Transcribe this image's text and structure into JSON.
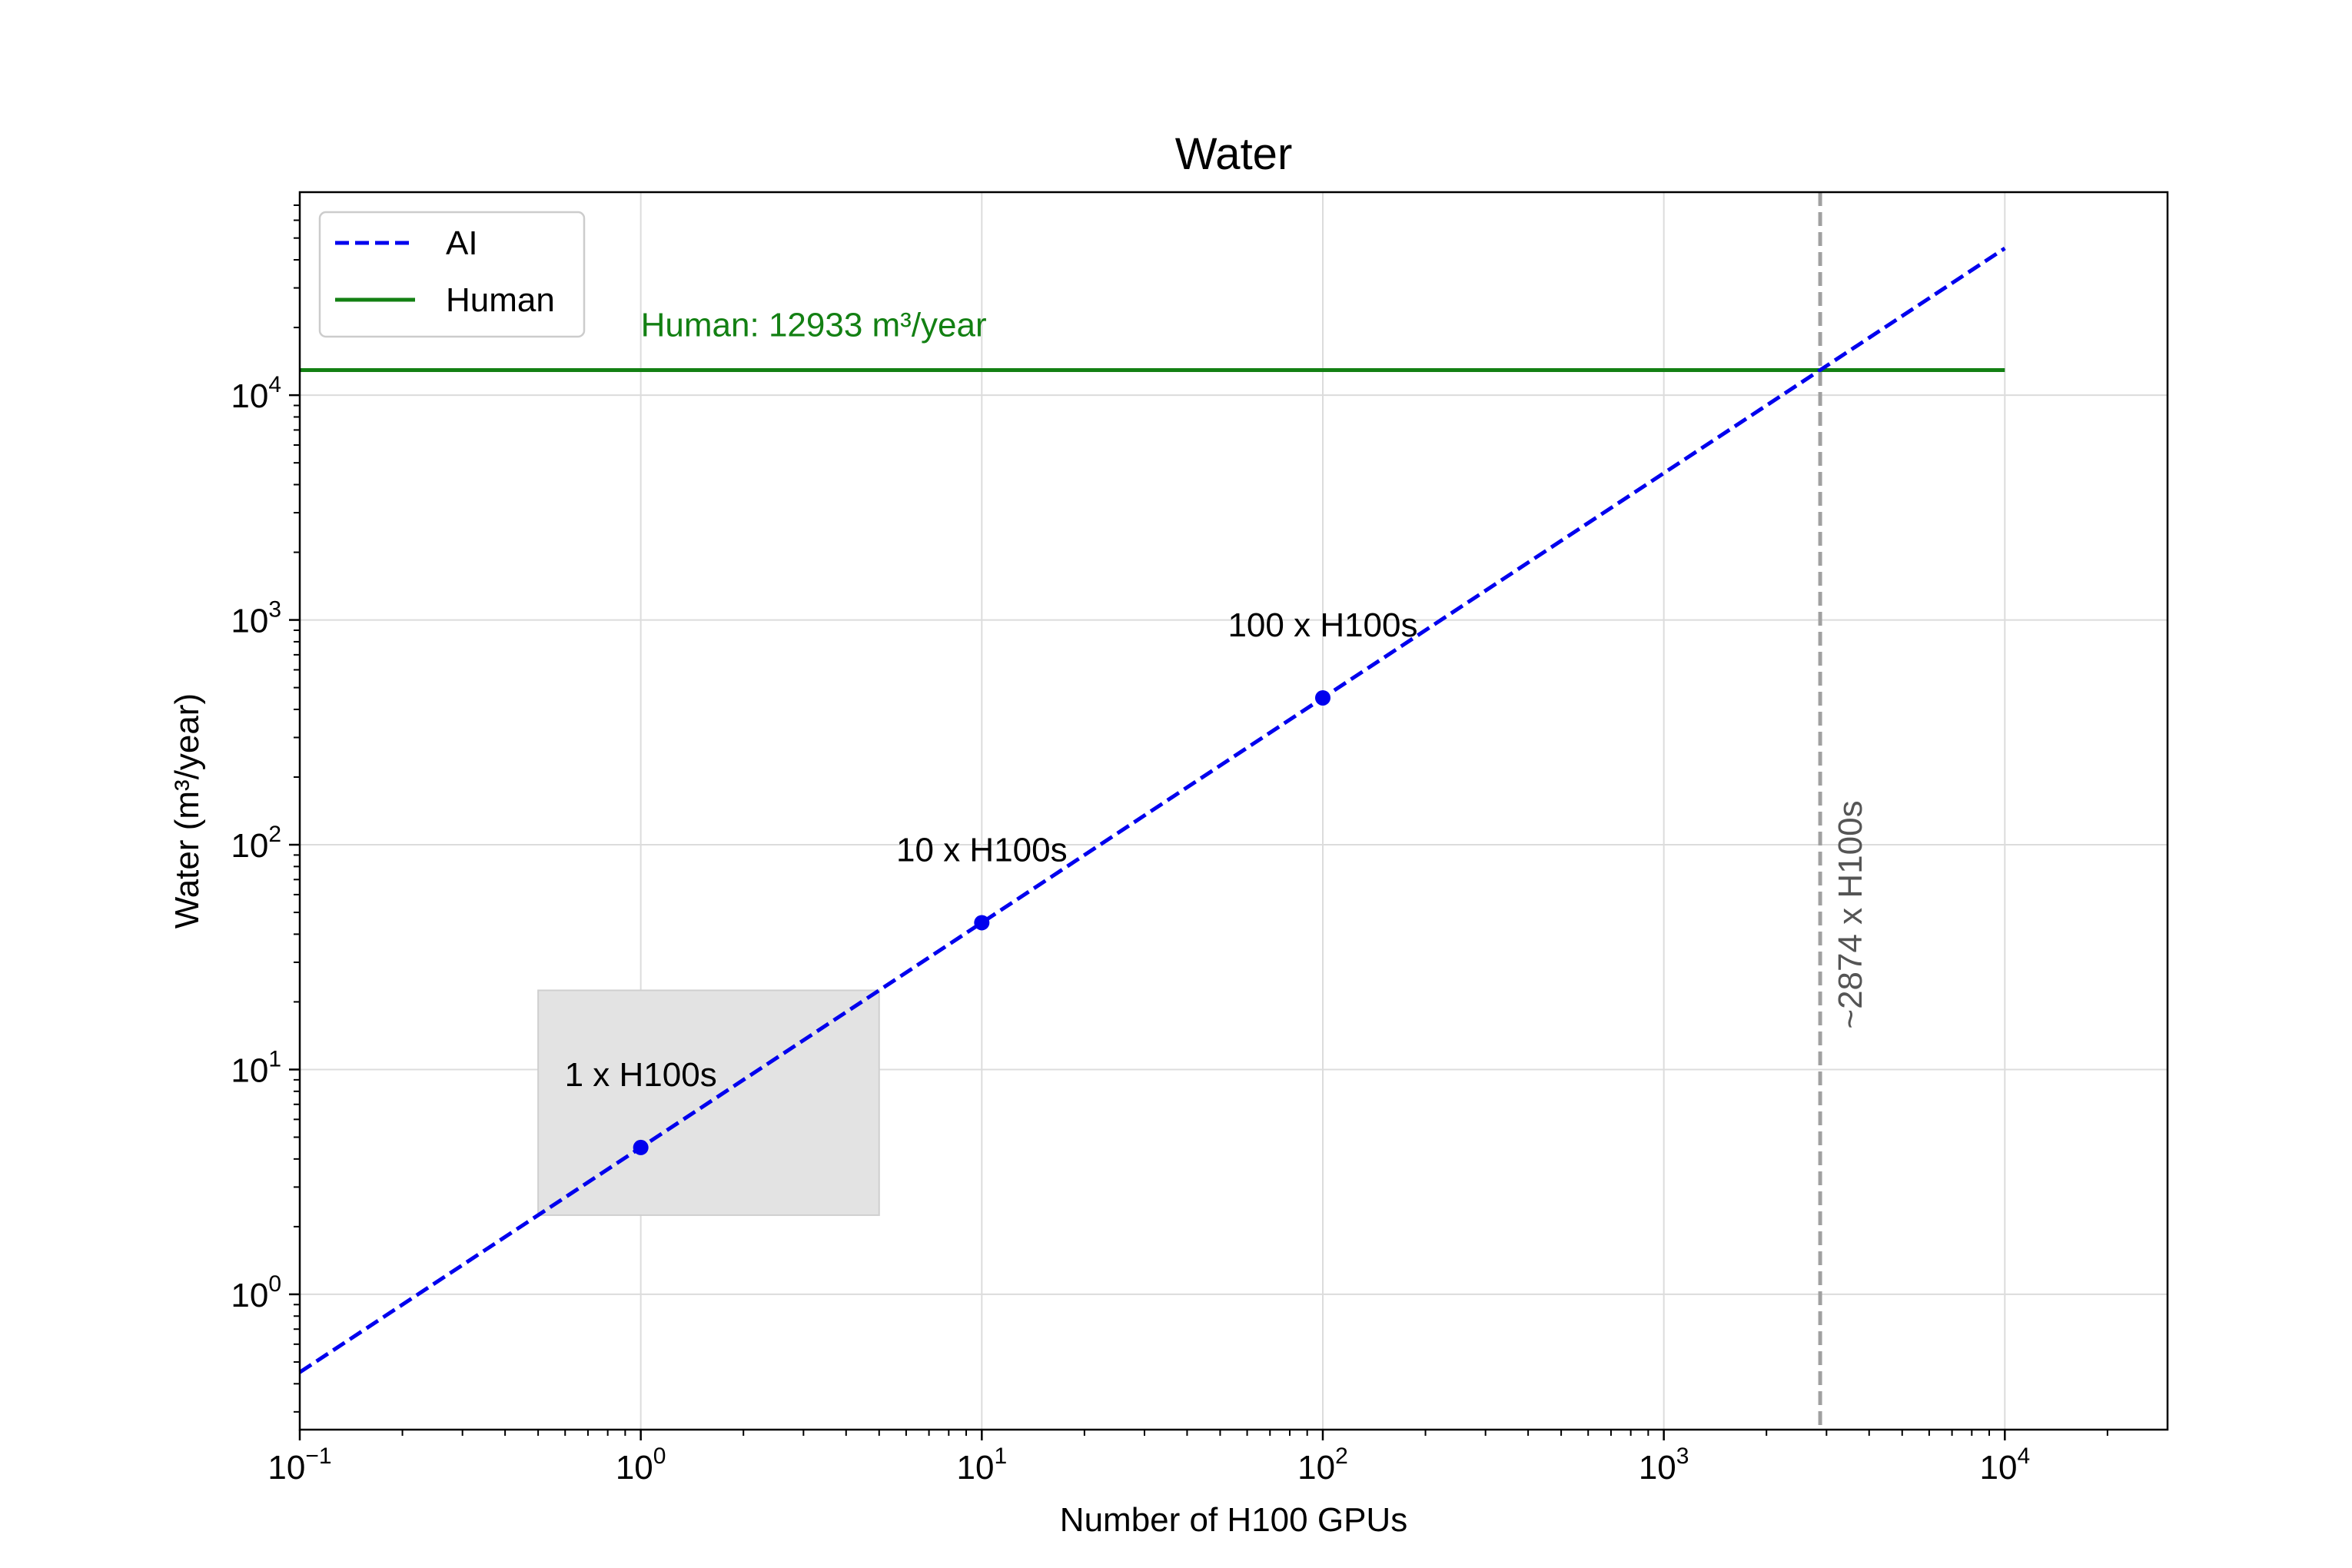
{
  "chart_data": {
    "type": "line",
    "title": "Water",
    "xlabel": "Number of H100 GPUs",
    "ylabel": "Water (m³/year)",
    "xscale": "log",
    "yscale": "log",
    "xlim": [
      0.1,
      30000
    ],
    "ylim": [
      0.25,
      80000
    ],
    "x_ticks": [
      {
        "value": 0.1,
        "base": "10",
        "exp": "−1"
      },
      {
        "value": 1,
        "base": "10",
        "exp": "0"
      },
      {
        "value": 10,
        "base": "10",
        "exp": "1"
      },
      {
        "value": 100,
        "base": "10",
        "exp": "2"
      },
      {
        "value": 1000,
        "base": "10",
        "exp": "3"
      },
      {
        "value": 10000,
        "base": "10",
        "exp": "4"
      }
    ],
    "y_ticks": [
      {
        "value": 1,
        "base": "10",
        "exp": "0"
      },
      {
        "value": 10,
        "base": "10",
        "exp": "1"
      },
      {
        "value": 100,
        "base": "10",
        "exp": "2"
      },
      {
        "value": 1000,
        "base": "10",
        "exp": "3"
      },
      {
        "value": 10000,
        "base": "10",
        "exp": "4"
      }
    ],
    "grid": true,
    "legend_position": "top-left",
    "series": [
      {
        "name": "AI",
        "style": "dashed",
        "color": "#0000ee",
        "x": [
          0.1,
          10000
        ],
        "y": [
          0.45,
          45000
        ]
      },
      {
        "name": "Human",
        "style": "solid",
        "color": "#138013",
        "x": [
          0.1,
          10000
        ],
        "y": [
          12933,
          12933
        ]
      }
    ],
    "points": [
      {
        "x": 1,
        "y": 4.5,
        "label": "1 x H100s"
      },
      {
        "x": 10,
        "y": 45,
        "label": "10 x H100s"
      },
      {
        "x": 100,
        "y": 450,
        "label": "100 x H100s"
      }
    ],
    "highlight_box": {
      "x": [
        0.5,
        5
      ],
      "y": [
        2.25,
        22.5
      ],
      "color": "#e3e3e3"
    },
    "human_label": "Human: 12933 m³/year",
    "crossover": {
      "x": 2874,
      "label": "~2874 x H100s",
      "color": "#a0a0a0"
    }
  }
}
